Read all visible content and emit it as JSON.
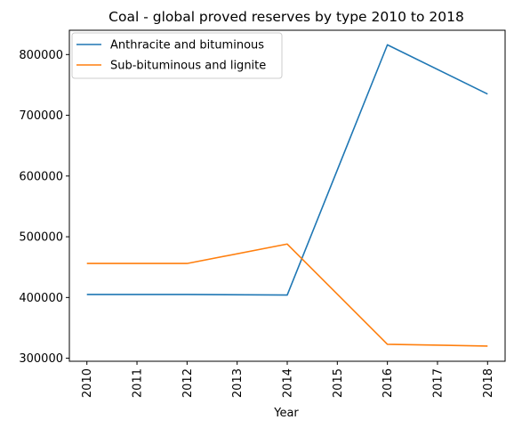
{
  "chart_data": {
    "type": "line",
    "title": "Coal - global proved reserves by type 2010 to 2018",
    "xlabel": "Year",
    "ylabel": "",
    "x": [
      "2010",
      "2011",
      "2012",
      "2013",
      "2014",
      "2015",
      "2016",
      "2017",
      "2018"
    ],
    "y_ticks": [
      "300000",
      "400000",
      "500000",
      "600000",
      "700000",
      "800000"
    ],
    "ylim": [
      295000,
      840000
    ],
    "grid": false,
    "legend_position": "top-left",
    "series": [
      {
        "name": "Anthracite and bituminous",
        "color": "#1f77b4",
        "points": [
          {
            "x": 2010,
            "y": 405000
          },
          {
            "x": 2012,
            "y": 405000
          },
          {
            "x": 2014,
            "y": 404000
          },
          {
            "x": 2016,
            "y": 816000
          },
          {
            "x": 2018,
            "y": 735000
          }
        ]
      },
      {
        "name": "Sub-bituminous and lignite",
        "color": "#ff7f0e",
        "points": [
          {
            "x": 2010,
            "y": 456000
          },
          {
            "x": 2012,
            "y": 456000
          },
          {
            "x": 2014,
            "y": 488000
          },
          {
            "x": 2016,
            "y": 323000
          },
          {
            "x": 2018,
            "y": 320000
          }
        ]
      }
    ]
  }
}
